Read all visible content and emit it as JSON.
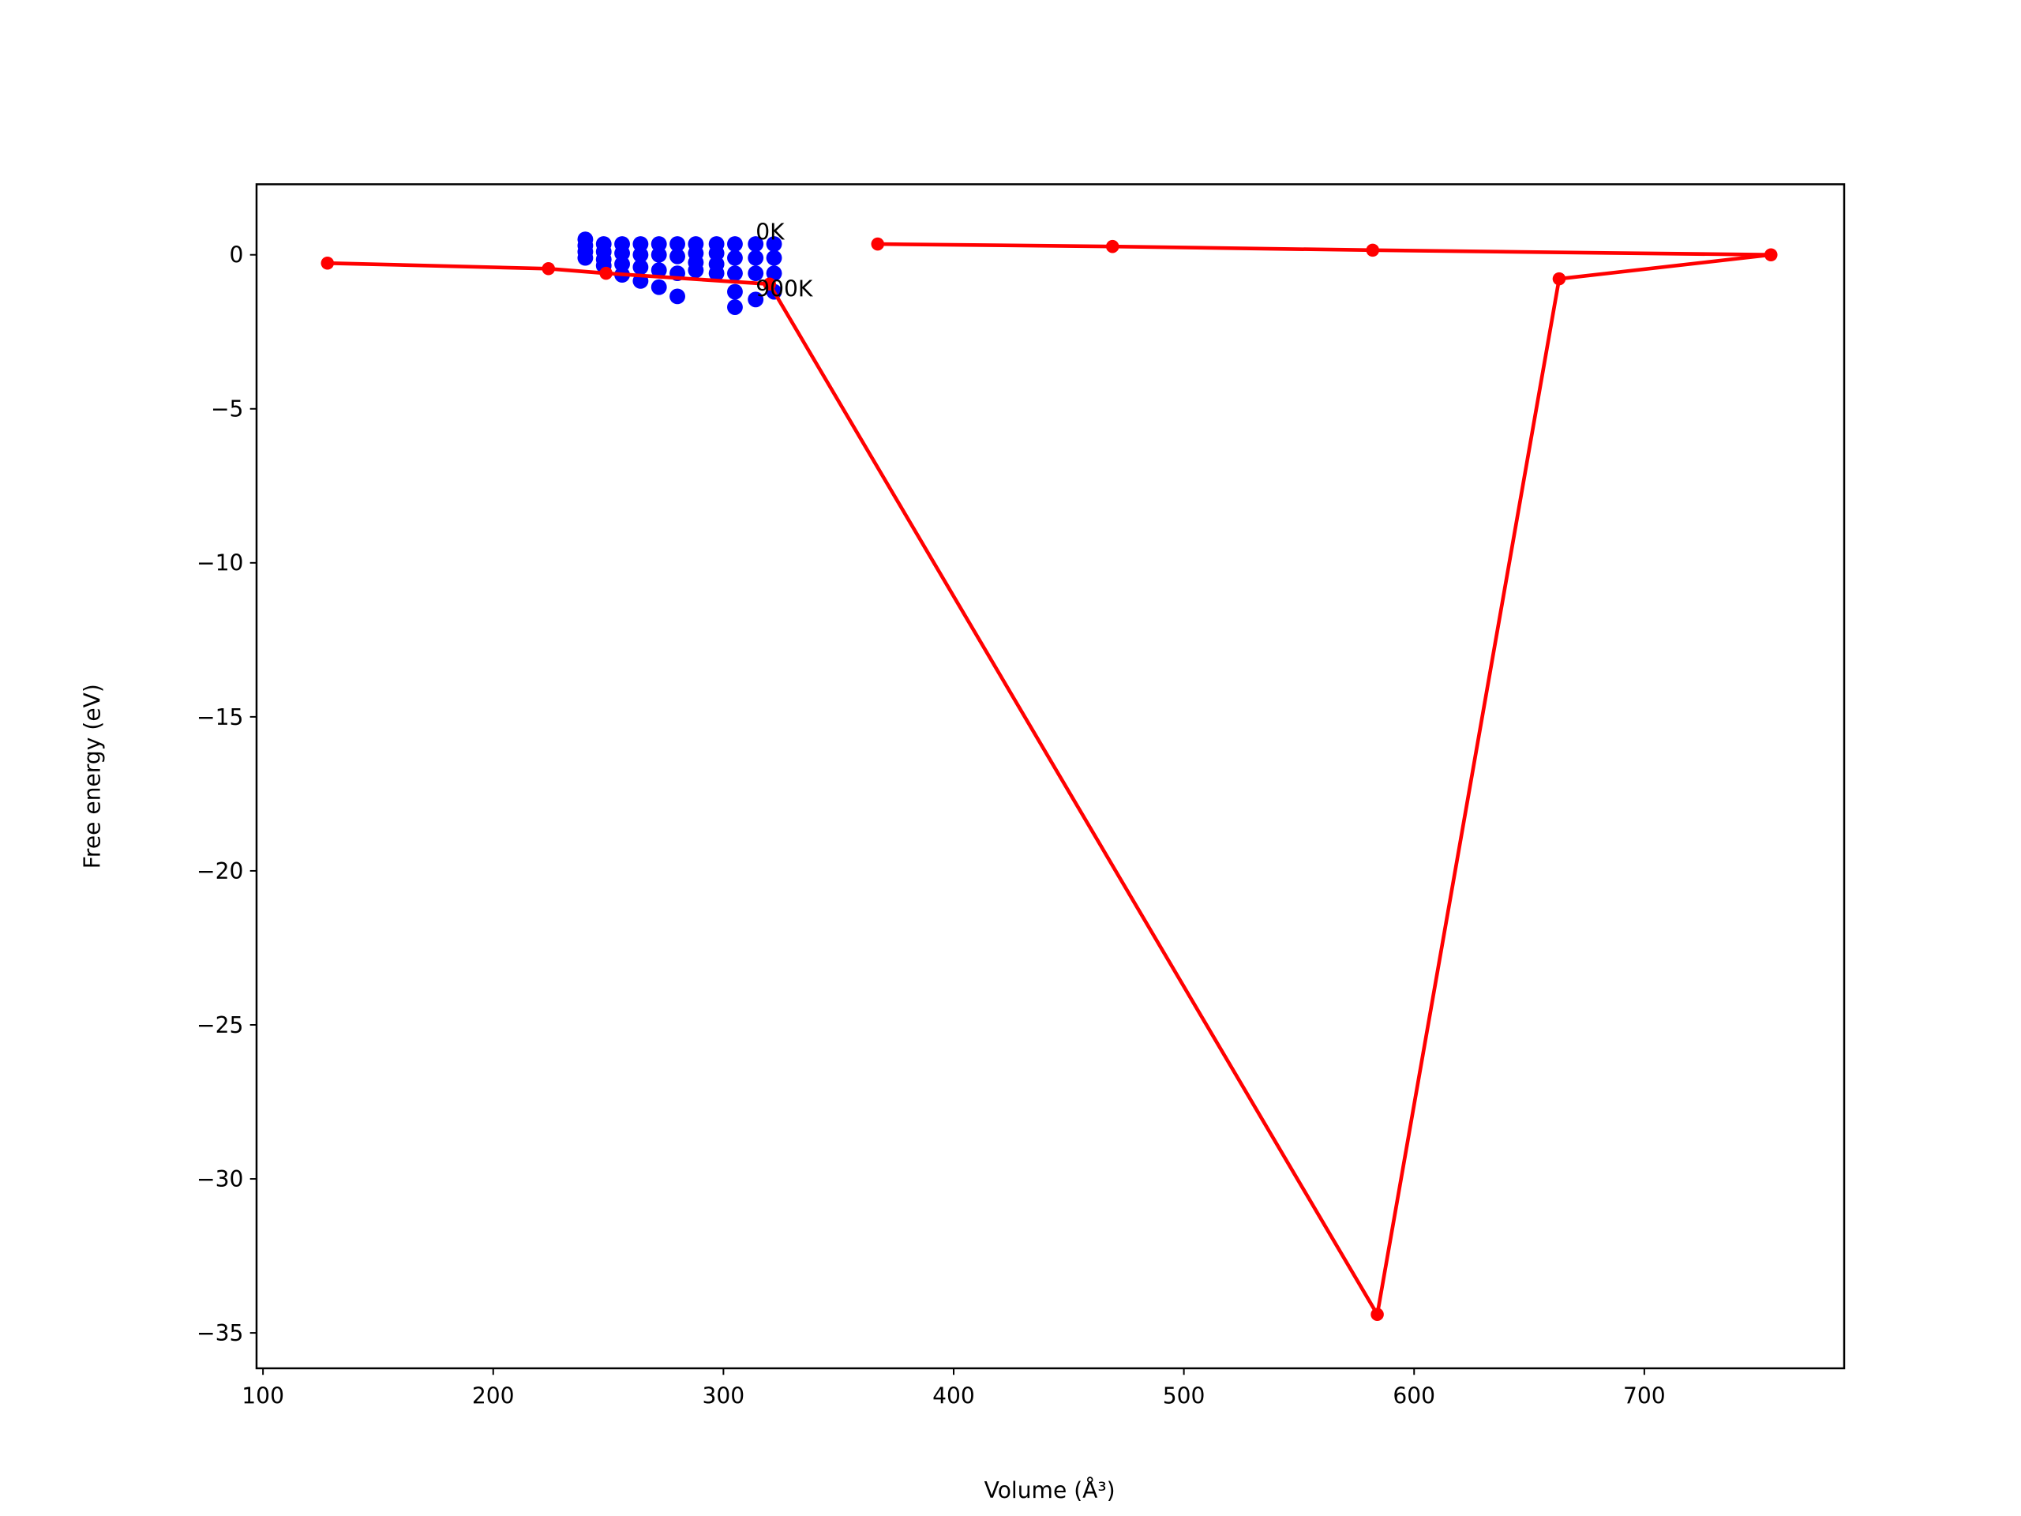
{
  "chart_data": {
    "type": "scatter",
    "xlabel": "Volume (Å³)",
    "ylabel": "Free energy (eV)",
    "xlim": [
      97.2,
      786.8
    ],
    "ylim": [
      -36.15,
      2.29
    ],
    "xticks": [
      100,
      200,
      300,
      400,
      500,
      600,
      700
    ],
    "yticks": [
      0,
      {
        "value": -5,
        "label": "−5"
      },
      {
        "value": -10,
        "label": "−10"
      },
      {
        "value": -15,
        "label": "−15"
      },
      {
        "value": -20,
        "label": "−20"
      },
      {
        "value": -25,
        "label": "−25"
      },
      {
        "value": -30,
        "label": "−30"
      },
      {
        "value": -35,
        "label": "−35"
      }
    ],
    "grid": false,
    "series": [
      {
        "type": "scatter",
        "color": "#0000ff",
        "x": [
          240,
          240,
          240,
          240,
          248,
          248,
          248,
          248,
          256,
          256,
          256,
          256,
          264,
          264,
          264,
          264,
          272,
          272,
          272,
          272,
          280,
          280,
          280,
          280,
          288,
          288,
          288,
          288,
          297,
          297,
          297,
          297,
          305,
          305,
          305,
          305,
          305,
          314,
          314,
          314,
          314,
          322,
          322,
          322,
          322
        ],
        "values": [
          0.5,
          0.3,
          0.1,
          -0.1,
          0.35,
          0.1,
          -0.15,
          -0.35,
          0.35,
          0.05,
          -0.3,
          -0.65,
          0.35,
          0,
          -0.4,
          -0.85,
          0.35,
          0,
          -0.5,
          -1.05,
          0.35,
          -0.05,
          -0.6,
          -1.35,
          0.35,
          0.05,
          -0.25,
          -0.5,
          0.35,
          0.05,
          -0.3,
          -0.6,
          0.35,
          -0.1,
          -0.6,
          -1.2,
          -1.7,
          0.35,
          -0.1,
          -0.6,
          -1.45,
          0.35,
          -0.1,
          -0.6,
          -1.2
        ]
      },
      {
        "type": "line",
        "color": "#ff0000",
        "x": [
          128,
          224,
          249,
          320,
          584,
          663,
          755,
          582,
          469,
          367
        ],
        "values": [
          -0.27,
          -0.45,
          -0.6,
          -0.95,
          -34.4,
          -0.78,
          0,
          0.15,
          0.27,
          0.35
        ]
      }
    ],
    "annotations": [
      {
        "text": "0K",
        "x": 314,
        "y": 0.75
      },
      {
        "text": "900K",
        "x": 314,
        "y": -1.1
      }
    ]
  }
}
